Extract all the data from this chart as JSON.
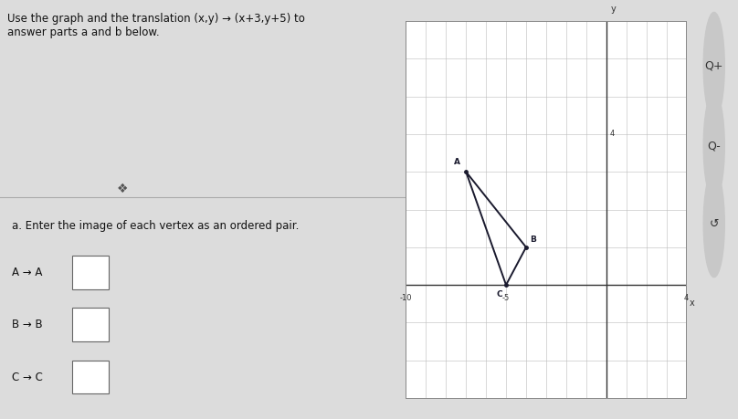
{
  "title_text": "Use the graph and the translation (x,y) → (x+3,y+5) to\nanswer parts a and b below.",
  "grid_xlim": [
    -10,
    4
  ],
  "grid_ylim": [
    -3,
    7
  ],
  "triangle_vertices": {
    "A": [
      -7,
      3
    ],
    "B": [
      -4,
      1
    ],
    "C": [
      -5,
      0
    ]
  },
  "part_a_text": "a. Enter the image of each vertex as an ordered pair.",
  "part_a_items": [
    "A → A",
    "B → B",
    "C → C"
  ],
  "bg_color": "#dcdcdc",
  "graph_bg": "#ffffff",
  "line_color": "#1a1a2e",
  "grid_color": "#bbbbbb",
  "axis_color": "#333333",
  "text_color": "#111111",
  "x_tick_labels": [
    [
      -10,
      "-10"
    ],
    [
      -5,
      "-5"
    ],
    [
      4,
      "4"
    ]
  ],
  "y_tick_labels": [
    [
      4,
      "4"
    ]
  ]
}
